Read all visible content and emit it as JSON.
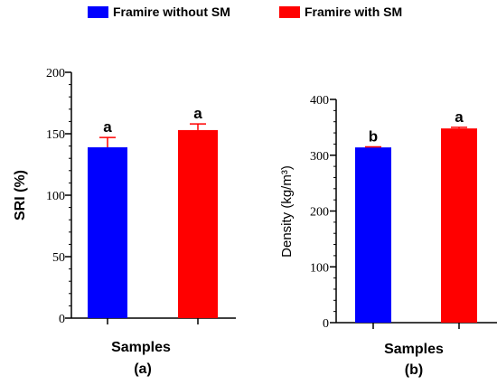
{
  "legend": [
    {
      "label": "Framire without SM",
      "color": "#0000ff"
    },
    {
      "label": "Framire with SM",
      "color": "#ff0000"
    }
  ],
  "colors": {
    "without": "#0000ff",
    "with": "#ff0000",
    "error": "#ff0000",
    "axis": "#000000"
  },
  "chart_data": [
    {
      "type": "bar",
      "panel_label": "(a)",
      "xlabel": "Samples",
      "ylabel": "SRI (%)",
      "ylim": [
        0,
        200
      ],
      "yticks": [
        0,
        50,
        100,
        150,
        200
      ],
      "tick_labels": [
        "0",
        "50",
        "100",
        "150",
        "200"
      ],
      "minor_step": 10,
      "grid": false,
      "series": [
        {
          "name": "Framire without SM",
          "value": 139,
          "error": 8,
          "significance": "a"
        },
        {
          "name": "Framire with SM",
          "value": 153,
          "error": 5,
          "significance": "a"
        }
      ]
    },
    {
      "type": "bar",
      "panel_label": "(b)",
      "xlabel": "Samples",
      "ylabel": "Density (kg/m³)",
      "ylim": [
        0,
        400
      ],
      "yticks": [
        0,
        100,
        200,
        300,
        400
      ],
      "tick_labels": [
        "0",
        "100",
        "200",
        "300",
        "400"
      ],
      "minor_step": 20,
      "grid": false,
      "series": [
        {
          "name": "Framire without SM",
          "value": 314,
          "error": 1,
          "significance": "b"
        },
        {
          "name": "Framire with SM",
          "value": 348,
          "error": 2,
          "significance": "a"
        }
      ]
    }
  ]
}
